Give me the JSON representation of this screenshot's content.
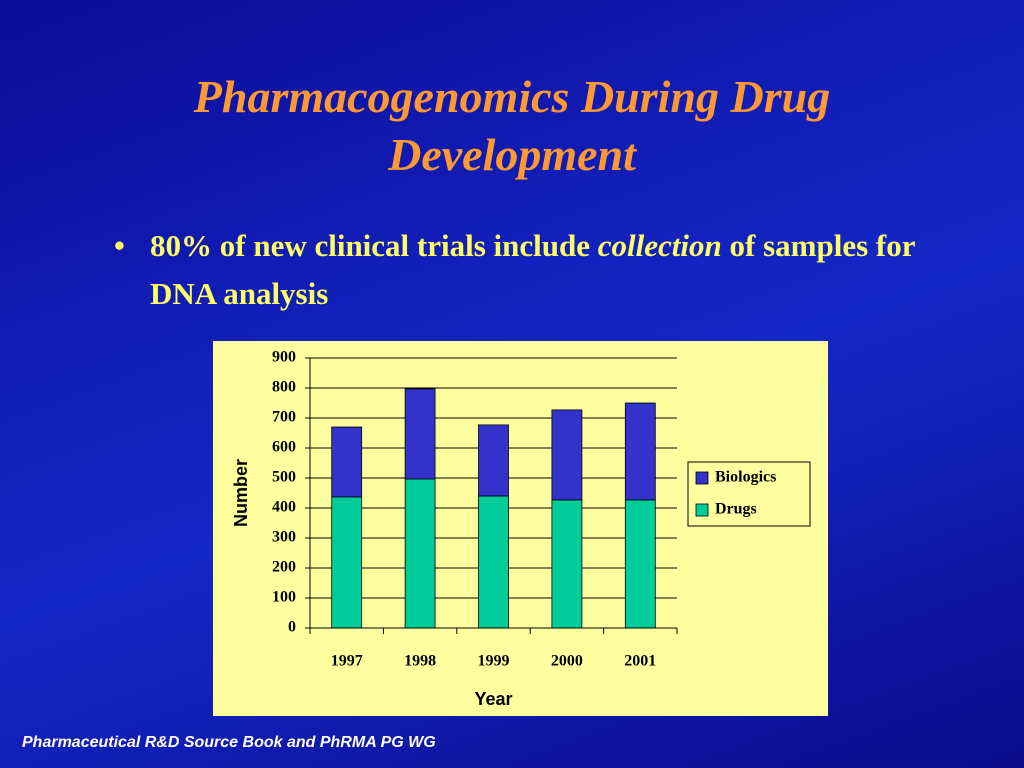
{
  "slide": {
    "title": "Pharmacogenomics During Drug Development",
    "bullet": [
      "80%",
      "of new clinical trials include",
      "collection",
      "of samples for DNA analysis"
    ],
    "footer": "Pharmaceutical R&D Source Book and PhRMA PG WG"
  },
  "chart_data": {
    "type": "stacked_bar",
    "categories": [
      "1997",
      "1998",
      "1999",
      "2000",
      "2001"
    ],
    "series": [
      {
        "name": "Drugs",
        "color": "#00cc99",
        "values": [
          437,
          497,
          440,
          427,
          427
        ]
      },
      {
        "name": "Biologics",
        "color": "#3333cc",
        "values": [
          233,
          300,
          237,
          300,
          323
        ]
      }
    ],
    "ylim": [
      0,
      900
    ],
    "yticks": [
      0,
      100,
      200,
      300,
      400,
      500,
      600,
      700,
      800,
      900
    ],
    "grid": true,
    "ylabel": "Number",
    "xlabel": "Year",
    "legend": "right"
  }
}
